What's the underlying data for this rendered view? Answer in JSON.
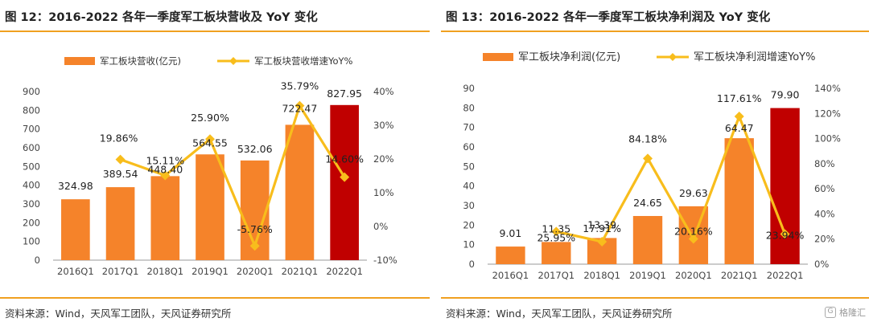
{
  "colors": {
    "bar": "#F5832A",
    "bar_highlight": "#C00000",
    "line": "#F8BD1C",
    "accent_rule": "#F0A020",
    "axis": "#999999"
  },
  "watermark": {
    "text": "格隆汇",
    "icon": "gelonghui-logo-icon"
  },
  "charts": [
    {
      "figure_title": "图 12：2016-2022 各年一季度军工板块营收及 YoY 变化",
      "source": "资料来源：Wind，天风军工团队，天风证券研究所"
    },
    {
      "figure_title": "图 13：2016-2022 各年一季度军工板块净利润及 YoY 变化",
      "source": "资料来源：Wind，天风军工团队，天风证券研究所"
    }
  ],
  "chart_data": [
    {
      "type": "bar",
      "title": "图 12：2016-2022 各年一季度军工板块营收及 YoY 变化",
      "categories": [
        "2016Q1",
        "2017Q1",
        "2018Q1",
        "2019Q1",
        "2020Q1",
        "2021Q1",
        "2022Q1"
      ],
      "series": [
        {
          "name": "军工板块营收(亿元)",
          "type": "bar",
          "axis": "left",
          "values": [
            324.98,
            389.54,
            448.4,
            564.55,
            532.06,
            722.47,
            827.95
          ],
          "labels": [
            "324.98",
            "389.54",
            "448.40",
            "564.55",
            "532.06",
            "722.47",
            "827.95"
          ]
        },
        {
          "name": "军工板块营收增速YoY%",
          "type": "line",
          "axis": "right",
          "values": [
            null,
            19.86,
            15.11,
            25.9,
            -5.76,
            35.79,
            14.6
          ],
          "labels": [
            "",
            "19.86%",
            "15.11%",
            "25.90%",
            "-5.76%",
            "35.79%",
            "14.60%"
          ]
        }
      ],
      "left_axis": {
        "min": 0,
        "max": 900,
        "ticks": [
          "0",
          "100",
          "200",
          "300",
          "400",
          "500",
          "600",
          "700",
          "800",
          "900"
        ]
      },
      "right_axis": {
        "min": -10,
        "max": 40,
        "ticks": [
          "-10%",
          "0%",
          "10%",
          "20%",
          "30%",
          "40%"
        ]
      },
      "highlight_last_bar": true,
      "legend_position": "top",
      "grid": false
    },
    {
      "type": "bar",
      "title": "图 13：2016-2022 各年一季度军工板块净利润及 YoY 变化",
      "categories": [
        "2016Q1",
        "2017Q1",
        "2018Q1",
        "2019Q1",
        "2020Q1",
        "2021Q1",
        "2022Q1"
      ],
      "series": [
        {
          "name": "军工板块净利润(亿元)",
          "type": "bar",
          "axis": "left",
          "values": [
            9.01,
            11.35,
            13.39,
            24.65,
            29.63,
            64.47,
            79.9
          ],
          "labels": [
            "9.01",
            "11.35",
            "13.39",
            "24.65",
            "29.63",
            "64.47",
            "79.90"
          ]
        },
        {
          "name": "军工板块净利润增速YoY%",
          "type": "line",
          "axis": "right",
          "values": [
            null,
            25.95,
            17.91,
            84.18,
            20.16,
            117.61,
            23.94
          ],
          "labels": [
            "",
            "25.95%",
            "17.91%",
            "84.18%",
            "20.16%",
            "117.61%",
            "23.94%"
          ]
        }
      ],
      "left_axis": {
        "min": 0,
        "max": 90,
        "ticks": [
          "0",
          "10",
          "20",
          "30",
          "40",
          "50",
          "60",
          "70",
          "80",
          "90"
        ]
      },
      "right_axis": {
        "min": 0,
        "max": 140,
        "ticks": [
          "0%",
          "20%",
          "40%",
          "60%",
          "80%",
          "100%",
          "120%",
          "140%"
        ]
      },
      "highlight_last_bar": true,
      "legend_position": "top",
      "grid": false
    }
  ]
}
